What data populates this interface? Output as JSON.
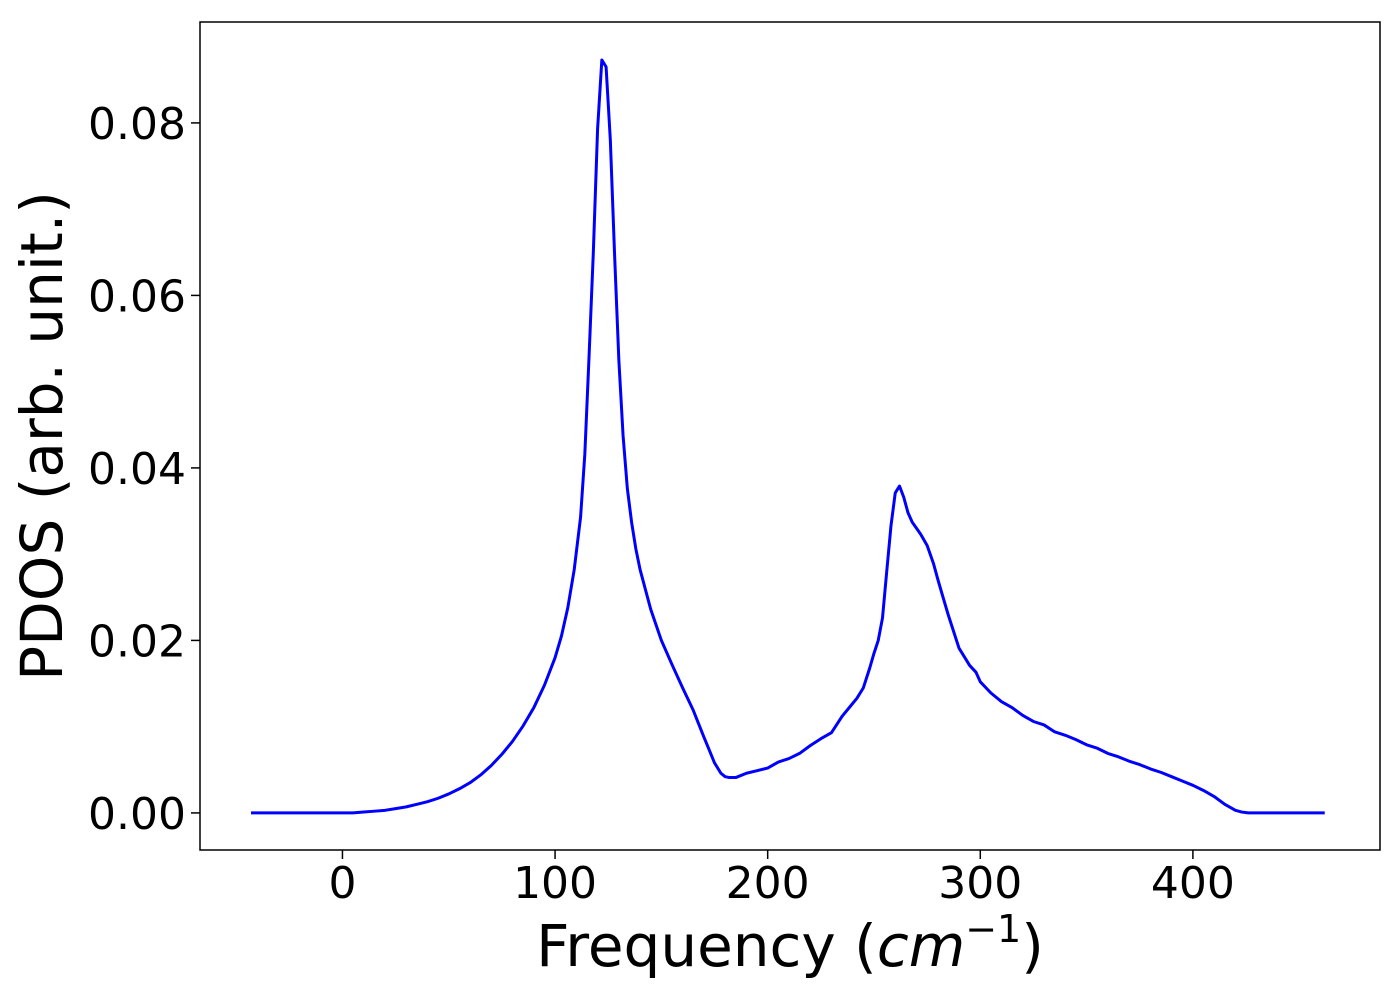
{
  "chart_data": {
    "type": "line",
    "title": "",
    "xlabel": "Frequency (cm⁻¹)",
    "xlabel_parts": {
      "prefix": "Frequency (",
      "math_base": "cm",
      "math_exponent": "−1",
      "suffix": ")"
    },
    "ylabel": "PDOS (arb. unit.)",
    "xlim": [
      -67,
      488
    ],
    "ylim": [
      -0.0043,
      0.0917
    ],
    "xticks": [
      0,
      100,
      200,
      300,
      400
    ],
    "xtick_labels": [
      "0",
      "100",
      "200",
      "300",
      "400"
    ],
    "yticks": [
      0.0,
      0.02,
      0.04,
      0.06,
      0.08
    ],
    "ytick_labels": [
      "0.00",
      "0.02",
      "0.04",
      "0.06",
      "0.08"
    ],
    "grid": false,
    "legend": "none",
    "colors": {
      "line": "#0000ff",
      "axes": "#000000",
      "background": "#ffffff"
    },
    "series": [
      {
        "x": [
          -43,
          -20,
          0,
          5,
          10,
          15,
          20,
          25,
          30,
          35,
          40,
          45,
          50,
          55,
          60,
          65,
          70,
          75,
          80,
          85,
          90,
          95,
          100,
          103,
          106,
          109,
          112,
          114,
          116,
          118,
          120,
          122,
          124,
          126,
          128,
          130,
          132,
          134,
          136,
          138,
          140,
          145,
          150,
          155,
          160,
          165,
          170,
          172,
          175,
          178,
          180,
          182,
          185,
          190,
          195,
          200,
          205,
          210,
          215,
          220,
          225,
          230,
          235,
          240,
          242,
          245,
          248,
          250,
          252,
          254,
          256,
          258,
          260,
          262,
          264,
          266,
          268,
          270,
          272,
          275,
          278,
          280,
          282,
          285,
          290,
          295,
          298,
          300,
          305,
          310,
          315,
          320,
          325,
          330,
          335,
          340,
          345,
          350,
          355,
          360,
          365,
          370,
          375,
          380,
          385,
          390,
          395,
          400,
          405,
          410,
          415,
          420,
          423,
          426,
          430,
          440,
          450,
          462
        ],
        "y": [
          0.0,
          0.0,
          0.0,
          0.0,
          0.0001,
          0.0002,
          0.0003,
          0.0005,
          0.0007,
          0.001,
          0.0013,
          0.0017,
          0.0022,
          0.0028,
          0.0035,
          0.0044,
          0.0055,
          0.0068,
          0.0083,
          0.0101,
          0.0122,
          0.0148,
          0.018,
          0.0205,
          0.0238,
          0.0282,
          0.0343,
          0.0416,
          0.053,
          0.065,
          0.0793,
          0.0873,
          0.0865,
          0.078,
          0.0647,
          0.0525,
          0.0437,
          0.0376,
          0.0337,
          0.0306,
          0.0282,
          0.0236,
          0.02,
          0.0172,
          0.0145,
          0.0119,
          0.0088,
          0.0076,
          0.0058,
          0.0046,
          0.0042,
          0.0041,
          0.0041,
          0.0046,
          0.0049,
          0.0052,
          0.0059,
          0.0063,
          0.0069,
          0.0078,
          0.0086,
          0.0093,
          0.0112,
          0.0127,
          0.0133,
          0.0145,
          0.0168,
          0.0185,
          0.02,
          0.0226,
          0.028,
          0.0333,
          0.0371,
          0.0379,
          0.0366,
          0.0348,
          0.0337,
          0.033,
          0.0323,
          0.031,
          0.0289,
          0.0271,
          0.0254,
          0.0229,
          0.0191,
          0.0171,
          0.0163,
          0.0152,
          0.0139,
          0.0129,
          0.0122,
          0.0113,
          0.0106,
          0.0102,
          0.0094,
          0.009,
          0.0085,
          0.0079,
          0.0075,
          0.0069,
          0.0065,
          0.006,
          0.0056,
          0.0051,
          0.0047,
          0.0042,
          0.0037,
          0.0032,
          0.0026,
          0.0019,
          0.001,
          0.0003,
          0.0001,
          0.0,
          0.0,
          0.0,
          0.0,
          0.0
        ]
      }
    ]
  }
}
